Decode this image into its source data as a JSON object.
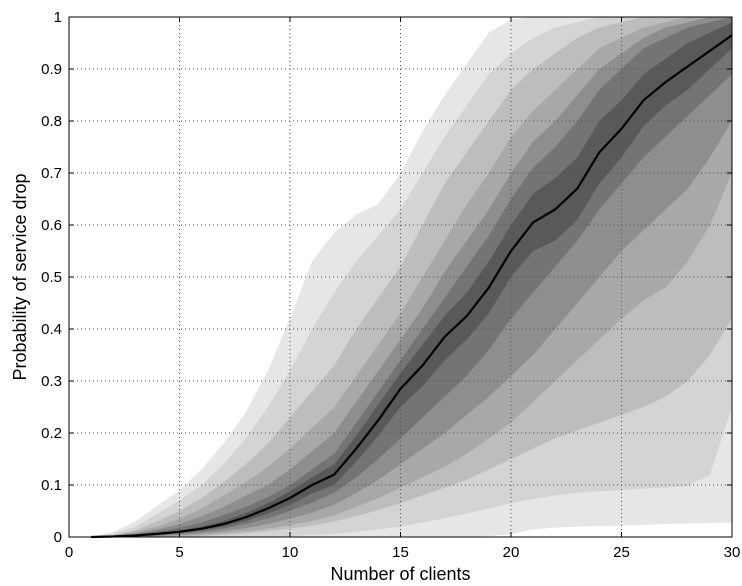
{
  "chart_data": {
    "type": "area",
    "title": "",
    "xlabel": "Number of clients",
    "ylabel": "Probability of service drop",
    "xlim": [
      0,
      30
    ],
    "ylim": [
      0,
      1
    ],
    "xticks": [
      0,
      5,
      10,
      15,
      20,
      25,
      30
    ],
    "yticks": [
      0,
      0.1,
      0.2,
      0.3,
      0.4,
      0.5,
      0.6,
      0.7,
      0.8,
      0.9,
      1
    ],
    "xtick_labels": [
      "0",
      "5",
      "10",
      "15",
      "20",
      "25",
      "30"
    ],
    "ytick_labels": [
      "0",
      "0.1",
      "0.2",
      "0.3",
      "0.4",
      "0.5",
      "0.6",
      "0.7",
      "0.8",
      "0.9",
      "1"
    ],
    "grid": true,
    "x": [
      1,
      2,
      3,
      4,
      5,
      6,
      7,
      8,
      9,
      10,
      11,
      12,
      13,
      14,
      15,
      16,
      17,
      18,
      19,
      20,
      21,
      22,
      23,
      24,
      25,
      26,
      27,
      28,
      29,
      30
    ],
    "median": {
      "values": [
        0,
        0.001,
        0.003,
        0.006,
        0.01,
        0.016,
        0.025,
        0.038,
        0.055,
        0.075,
        0.1,
        0.12,
        0.17,
        0.225,
        0.285,
        0.33,
        0.385,
        0.425,
        0.48,
        0.55,
        0.605,
        0.63,
        0.67,
        0.74,
        0.785,
        0.84,
        0.875,
        0.905,
        0.935,
        0.965
      ],
      "color": "#000000"
    },
    "bands": [
      {
        "upper": [
          0,
          0.01,
          0.03,
          0.06,
          0.09,
          0.13,
          0.18,
          0.24,
          0.32,
          0.42,
          0.53,
          0.585,
          0.62,
          0.64,
          0.7,
          0.78,
          0.85,
          0.91,
          0.97,
          0.995,
          1,
          1,
          1,
          1,
          1,
          1,
          1,
          1,
          1,
          1
        ],
        "lower": [
          0,
          0,
          0,
          0,
          0,
          0,
          0,
          0,
          0,
          0,
          0,
          0,
          0,
          0,
          0,
          0,
          0,
          0,
          0.002,
          0.005,
          0.015,
          0.018,
          0.02,
          0.021,
          0.022,
          0.023,
          0.025,
          0.026,
          0.027,
          0.028
        ],
        "color": "#e6e6e6"
      },
      {
        "upper": [
          0,
          0.006,
          0.02,
          0.045,
          0.07,
          0.1,
          0.14,
          0.19,
          0.25,
          0.32,
          0.4,
          0.47,
          0.53,
          0.58,
          0.63,
          0.7,
          0.77,
          0.83,
          0.89,
          0.93,
          0.96,
          0.98,
          0.99,
          1,
          1,
          1,
          1,
          1,
          1,
          1
        ],
        "lower": [
          0,
          0,
          0,
          0,
          0,
          0,
          0,
          0,
          0.001,
          0.002,
          0.004,
          0.006,
          0.01,
          0.015,
          0.02,
          0.028,
          0.036,
          0.045,
          0.055,
          0.065,
          0.073,
          0.08,
          0.085,
          0.088,
          0.09,
          0.093,
          0.095,
          0.098,
          0.12,
          0.25
        ],
        "color": "#d4d4d4"
      },
      {
        "upper": [
          0,
          0.004,
          0.013,
          0.03,
          0.05,
          0.075,
          0.105,
          0.14,
          0.18,
          0.23,
          0.28,
          0.33,
          0.4,
          0.46,
          0.52,
          0.6,
          0.68,
          0.74,
          0.8,
          0.86,
          0.9,
          0.93,
          0.96,
          0.98,
          0.99,
          1,
          1,
          1,
          1,
          1
        ],
        "lower": [
          0,
          0,
          0,
          0,
          0.001,
          0.002,
          0.004,
          0.007,
          0.011,
          0.016,
          0.022,
          0.03,
          0.04,
          0.052,
          0.065,
          0.08,
          0.095,
          0.11,
          0.13,
          0.15,
          0.17,
          0.19,
          0.205,
          0.22,
          0.235,
          0.25,
          0.27,
          0.3,
          0.35,
          0.42
        ],
        "color": "#bdbdbd"
      },
      {
        "upper": [
          0,
          0.003,
          0.01,
          0.02,
          0.035,
          0.055,
          0.08,
          0.105,
          0.135,
          0.17,
          0.21,
          0.25,
          0.31,
          0.37,
          0.43,
          0.5,
          0.57,
          0.64,
          0.7,
          0.77,
          0.82,
          0.86,
          0.9,
          0.94,
          0.96,
          0.98,
          0.99,
          1,
          1,
          1
        ],
        "lower": [
          0,
          0,
          0,
          0.001,
          0.002,
          0.004,
          0.007,
          0.011,
          0.016,
          0.023,
          0.031,
          0.042,
          0.058,
          0.075,
          0.095,
          0.115,
          0.135,
          0.16,
          0.19,
          0.22,
          0.26,
          0.3,
          0.34,
          0.38,
          0.42,
          0.455,
          0.48,
          0.53,
          0.6,
          0.7
        ],
        "color": "#a8a8a8"
      },
      {
        "upper": [
          0,
          0.002,
          0.007,
          0.015,
          0.025,
          0.04,
          0.058,
          0.08,
          0.1,
          0.13,
          0.165,
          0.2,
          0.26,
          0.32,
          0.38,
          0.44,
          0.51,
          0.57,
          0.63,
          0.7,
          0.76,
          0.8,
          0.85,
          0.9,
          0.93,
          0.96,
          0.98,
          0.99,
          1,
          1
        ],
        "lower": [
          0,
          0,
          0,
          0.002,
          0.004,
          0.007,
          0.011,
          0.017,
          0.025,
          0.035,
          0.047,
          0.062,
          0.085,
          0.11,
          0.14,
          0.17,
          0.2,
          0.235,
          0.27,
          0.31,
          0.35,
          0.4,
          0.45,
          0.5,
          0.55,
          0.59,
          0.63,
          0.67,
          0.73,
          0.8
        ],
        "color": "#8e8e8e"
      },
      {
        "upper": [
          0,
          0.0015,
          0.005,
          0.011,
          0.018,
          0.028,
          0.042,
          0.058,
          0.077,
          0.1,
          0.13,
          0.16,
          0.22,
          0.28,
          0.34,
          0.4,
          0.46,
          0.52,
          0.58,
          0.65,
          0.71,
          0.75,
          0.8,
          0.86,
          0.9,
          0.94,
          0.96,
          0.98,
          0.99,
          1
        ],
        "lower": [
          0,
          0,
          0.001,
          0.003,
          0.006,
          0.01,
          0.016,
          0.025,
          0.036,
          0.05,
          0.066,
          0.085,
          0.115,
          0.15,
          0.19,
          0.23,
          0.27,
          0.31,
          0.36,
          0.42,
          0.47,
          0.52,
          0.57,
          0.63,
          0.68,
          0.73,
          0.77,
          0.81,
          0.85,
          0.89
        ],
        "color": "#747474"
      },
      {
        "upper": [
          0,
          0.0012,
          0.004,
          0.008,
          0.013,
          0.02,
          0.031,
          0.046,
          0.065,
          0.088,
          0.115,
          0.14,
          0.195,
          0.255,
          0.315,
          0.37,
          0.425,
          0.47,
          0.53,
          0.6,
          0.66,
          0.69,
          0.73,
          0.8,
          0.84,
          0.89,
          0.92,
          0.95,
          0.97,
          0.99
        ],
        "lower": [
          0,
          0,
          0.002,
          0.004,
          0.008,
          0.013,
          0.02,
          0.031,
          0.045,
          0.062,
          0.084,
          0.1,
          0.145,
          0.195,
          0.25,
          0.29,
          0.34,
          0.38,
          0.43,
          0.5,
          0.55,
          0.57,
          0.61,
          0.68,
          0.73,
          0.79,
          0.83,
          0.86,
          0.9,
          0.94
        ],
        "color": "#595959"
      }
    ]
  }
}
